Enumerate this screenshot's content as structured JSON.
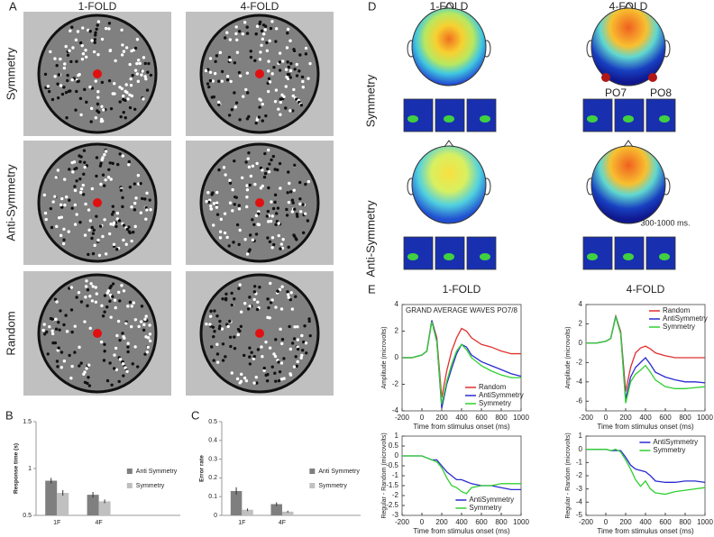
{
  "panel_labels": [
    "A",
    "B",
    "C",
    "D",
    "E"
  ],
  "stimuli": {
    "columns": [
      "1-FOLD",
      "4-FOLD"
    ],
    "rows": [
      "Symmetry",
      "Anti-Symmetry",
      "Random"
    ]
  },
  "scalp": {
    "columns": [
      "1-FOLD",
      "4-FOLD"
    ],
    "rows": [
      "Symmetry",
      "Anti-Symmetry"
    ],
    "electrodes": [
      "PO7",
      "PO8"
    ],
    "window": "300-1000 ms."
  },
  "chart_data": [
    {
      "type": "bar",
      "y_label": "Response time (s)",
      "categories": [
        "1F",
        "4F"
      ],
      "series": [
        {
          "name": "Anti Symmetry",
          "color": "#7f7f7f",
          "values": [
            0.87,
            0.72
          ],
          "errors": [
            0.03,
            0.03
          ]
        },
        {
          "name": "Symmetry",
          "color": "#c0c0c0",
          "values": [
            0.74,
            0.65
          ],
          "errors": [
            0.03,
            0.02
          ]
        }
      ],
      "ylim": [
        0.5,
        1.5
      ],
      "yticks": [
        0.5,
        1,
        1.5
      ]
    },
    {
      "type": "bar",
      "y_label": "Error rate",
      "categories": [
        "1F",
        "4F"
      ],
      "series": [
        {
          "name": "Anti Symmetry",
          "color": "#7f7f7f",
          "values": [
            0.13,
            0.06
          ],
          "errors": [
            0.02,
            0.01
          ]
        },
        {
          "name": "Symmetry",
          "color": "#c0c0c0",
          "values": [
            0.03,
            0.02
          ],
          "errors": [
            0.007,
            0.005
          ]
        }
      ],
      "ylim": [
        0,
        0.5
      ],
      "yticks": [
        0,
        0.1,
        0.2,
        0.3,
        0.4,
        0.5
      ]
    },
    {
      "type": "line",
      "title": "1-FOLD",
      "annotation": "GRAND AVERAGE WAVES PO7/8",
      "x_label": "Time from stimulus onset (ms)",
      "y_label": "Amplitude (microvolts)",
      "legend": "lower right",
      "x": [
        -200,
        -100,
        0,
        50,
        100,
        150,
        200,
        250,
        300,
        350,
        400,
        450,
        500,
        600,
        700,
        800,
        900,
        1000
      ],
      "series": [
        {
          "name": "Random",
          "color": "#e03030",
          "values": [
            0,
            0,
            0.2,
            0.5,
            2.8,
            1.5,
            -3,
            -1,
            0.5,
            1.5,
            2.2,
            2,
            1.5,
            1,
            0.8,
            0.5,
            0.3,
            0.3
          ]
        },
        {
          "name": "AntiSymmetry",
          "color": "#2a2ad0",
          "values": [
            0,
            0,
            0.2,
            0.5,
            2.8,
            1.3,
            -3.8,
            -2,
            -0.8,
            0.3,
            1,
            0.8,
            0.2,
            -0.3,
            -0.6,
            -0.9,
            -1.2,
            -1.4
          ]
        },
        {
          "name": "Symmetry",
          "color": "#30d030",
          "values": [
            0,
            0,
            0.2,
            0.5,
            2.7,
            1.2,
            -3.5,
            -1.8,
            -0.5,
            0.5,
            1,
            0.6,
            0,
            -0.6,
            -1,
            -1.3,
            -1.5,
            -1.5
          ]
        }
      ],
      "xlim": [
        -200,
        1000
      ],
      "xticks": [
        -200,
        0,
        200,
        400,
        600,
        800,
        1000
      ],
      "ylim": [
        -4,
        4
      ],
      "yticks": [
        -4,
        -2,
        0,
        2,
        4
      ]
    },
    {
      "type": "line",
      "title": "4-FOLD",
      "x_label": "Time from stimulus onset (ms)",
      "y_label": "Amplitude (microvolts)",
      "legend": "upper right",
      "x": [
        -200,
        -100,
        0,
        50,
        100,
        150,
        200,
        250,
        300,
        350,
        400,
        450,
        500,
        600,
        700,
        800,
        900,
        1000
      ],
      "series": [
        {
          "name": "Random",
          "color": "#e03030",
          "values": [
            0,
            0,
            0.2,
            0.5,
            2.8,
            1.2,
            -5,
            -2.5,
            -1,
            -0.5,
            -0.3,
            -0.6,
            -1,
            -1.3,
            -1.5,
            -1.5,
            -1.5,
            -1.5
          ]
        },
        {
          "name": "AntiSymmetry",
          "color": "#2a2ad0",
          "values": [
            0,
            0,
            0.2,
            0.5,
            2.8,
            1,
            -5.8,
            -3.5,
            -2.5,
            -2,
            -1.5,
            -2.2,
            -3,
            -3.5,
            -3.8,
            -4,
            -4,
            -4.1
          ]
        },
        {
          "name": "Symmetry",
          "color": "#30d030",
          "values": [
            0,
            0,
            0.2,
            0.5,
            2.7,
            1,
            -6.2,
            -4,
            -3.2,
            -2.8,
            -2.3,
            -3,
            -3.8,
            -4.5,
            -4.7,
            -4.7,
            -4.6,
            -4.5
          ]
        }
      ],
      "xlim": [
        -200,
        1000
      ],
      "xticks": [
        -200,
        0,
        200,
        400,
        600,
        800,
        1000
      ],
      "ylim": [
        -7,
        4
      ],
      "yticks": [
        -6,
        -4,
        -2,
        0,
        2,
        4
      ]
    },
    {
      "type": "line",
      "x_label": "Time from stimulus onset (ms)",
      "y_label": "Regular - Random (microvolts)",
      "legend": "lower middle",
      "x": [
        -200,
        -100,
        0,
        50,
        100,
        150,
        200,
        250,
        300,
        350,
        400,
        450,
        500,
        600,
        700,
        800,
        900,
        1000
      ],
      "series": [
        {
          "name": "AntiSymmetry",
          "color": "#2a2ad0",
          "values": [
            0,
            0,
            0,
            -0.1,
            -0.2,
            -0.2,
            -0.5,
            -0.8,
            -1,
            -1.2,
            -1.2,
            -1.3,
            -1.4,
            -1.5,
            -1.5,
            -1.6,
            -1.7,
            -1.7
          ]
        },
        {
          "name": "Symmetry",
          "color": "#30d030",
          "values": [
            0,
            0,
            0,
            -0.1,
            -0.2,
            -0.3,
            -0.6,
            -1.1,
            -1.5,
            -1.6,
            -1.8,
            -1.9,
            -1.6,
            -1.5,
            -1.5,
            -1.4,
            -1.4,
            -1.4
          ]
        }
      ],
      "xlim": [
        -200,
        1000
      ],
      "xticks": [
        -200,
        0,
        200,
        400,
        600,
        800,
        1000
      ],
      "ylim": [
        -3,
        1
      ],
      "yticks": [
        -3,
        -2.5,
        -2,
        -1.5,
        -1,
        -0.5,
        0,
        0.5,
        1
      ]
    },
    {
      "type": "line",
      "x_label": "Time from stimulus onset (ms)",
      "y_label": "Regular - Random (microvolts)",
      "legend": "upper middle",
      "x": [
        -200,
        -100,
        0,
        50,
        100,
        150,
        200,
        250,
        300,
        350,
        400,
        450,
        500,
        600,
        700,
        800,
        900,
        1000
      ],
      "series": [
        {
          "name": "AntiSymmetry",
          "color": "#2a2ad0",
          "values": [
            0,
            0,
            0,
            -0.1,
            -0.1,
            -0.1,
            -0.6,
            -1.2,
            -1.5,
            -1.6,
            -1.7,
            -2,
            -2.4,
            -2.5,
            -2.5,
            -2.4,
            -2.4,
            -2.5
          ]
        },
        {
          "name": "Symmetry",
          "color": "#30d030",
          "values": [
            0,
            0,
            0,
            -0.1,
            0,
            -0.2,
            -0.8,
            -1.5,
            -2.3,
            -2.8,
            -2.4,
            -3,
            -3.3,
            -3.4,
            -3.2,
            -3.1,
            -3,
            -2.9
          ]
        }
      ],
      "xlim": [
        -200,
        1000
      ],
      "xticks": [
        -200,
        0,
        200,
        400,
        600,
        800,
        1000
      ],
      "ylim": [
        -5,
        1
      ],
      "yticks": [
        -5,
        -4,
        -3,
        -2,
        -1,
        0,
        1
      ]
    }
  ]
}
